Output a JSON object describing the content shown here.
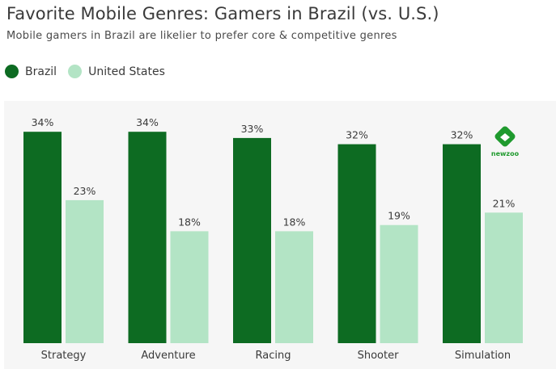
{
  "header": {
    "title": "Favorite Mobile Genres: Gamers in Brazil (vs. U.S.)",
    "subtitle": "Mobile gamers in Brazil are likelier to prefer core & competitive genres"
  },
  "logo": {
    "text": "newzoo",
    "icon": "newzoo-logo-icon"
  },
  "colors": {
    "brazil": "#0d6b22",
    "us": "#b3e4c5",
    "plot_background": "#f6f6f6"
  },
  "chart_data": {
    "type": "bar",
    "title": "Favorite Mobile Genres: Gamers in Brazil (vs. U.S.)",
    "subtitle": "Mobile gamers in Brazil are likelier to prefer core & competitive genres",
    "categories": [
      "Strategy",
      "Adventure",
      "Racing",
      "Shooter",
      "Simulation"
    ],
    "series": [
      {
        "name": "Brazil",
        "values": [
          34,
          34,
          33,
          32,
          32
        ],
        "labels": [
          "34%",
          "34%",
          "33%",
          "32%",
          "32%"
        ],
        "color": "#0d6b22"
      },
      {
        "name": "United States",
        "values": [
          23,
          18,
          18,
          19,
          21
        ],
        "labels": [
          "23%",
          "18%",
          "18%",
          "19%",
          "21%"
        ],
        "color": "#b3e4c5"
      }
    ],
    "ylim": [
      0,
      40
    ],
    "legend": "top-left",
    "grid": false,
    "data_labels": true
  }
}
